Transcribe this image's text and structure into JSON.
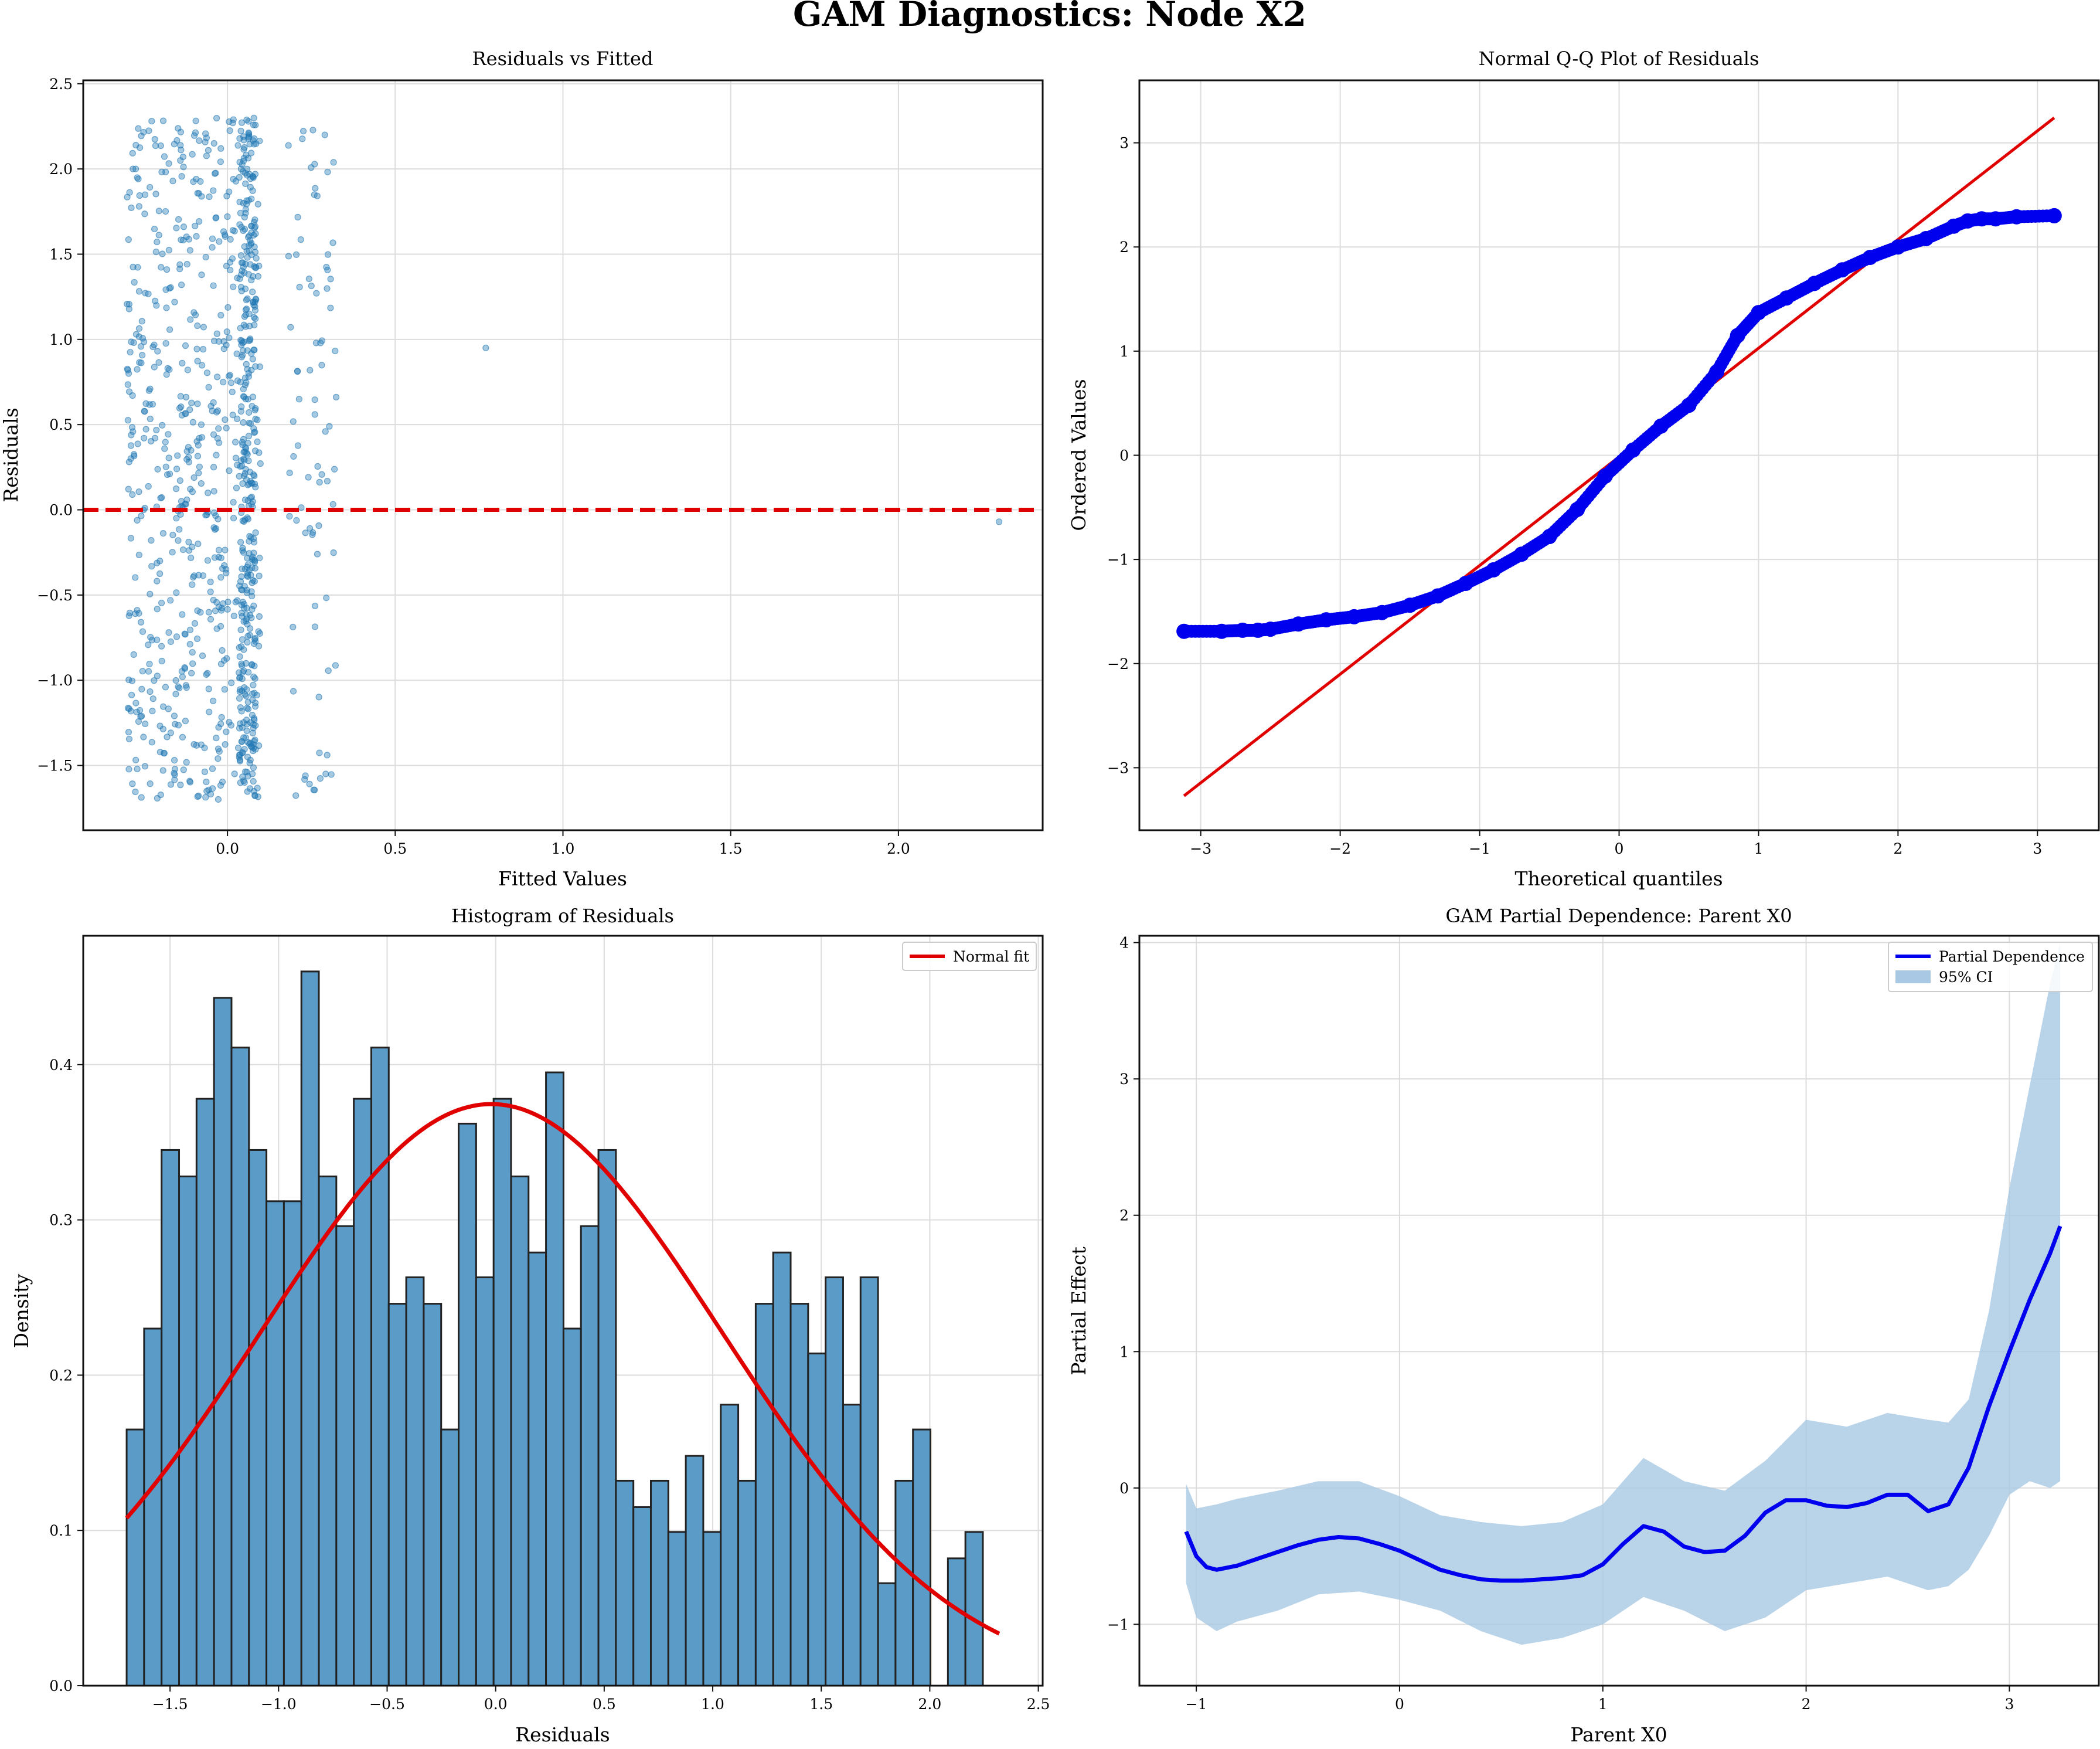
{
  "figure": {
    "title": "GAM Diagnostics: Node X2"
  },
  "chart_data": [
    {
      "type": "scatter",
      "title": "Residuals vs Fitted",
      "xlabel": "Fitted Values",
      "ylabel": "Residuals",
      "xlim": [
        -0.43,
        2.43
      ],
      "ylim": [
        -1.88,
        2.52
      ],
      "xticks": [
        0.0,
        0.5,
        1.0,
        1.5,
        2.0
      ],
      "yticks": [
        -1.5,
        -1.0,
        -0.5,
        0.0,
        0.5,
        1.0,
        1.5,
        2.0,
        2.5
      ],
      "grid": true,
      "reference_line": {
        "y": 0.0,
        "color": "#e00000",
        "style": "dashed"
      },
      "point_color": "#1f77b4",
      "points_summary": {
        "count_approx": 1000,
        "main_cluster_x_range": [
          -0.3,
          0.1
        ],
        "residual_range": [
          -1.7,
          2.3
        ],
        "outlier_points": [
          [
            0.77,
            0.95
          ],
          [
            2.3,
            -0.07
          ]
        ]
      }
    },
    {
      "type": "scatter",
      "title": "Normal Q-Q Plot of Residuals",
      "xlabel": "Theoretical quantiles",
      "ylabel": "Ordered Values",
      "xlim": [
        -3.44,
        3.44
      ],
      "ylim": [
        -3.6,
        3.6
      ],
      "xticks": [
        -3,
        -2,
        -1,
        0,
        1,
        2,
        3
      ],
      "yticks": [
        -3,
        -2,
        -1,
        0,
        1,
        2,
        3
      ],
      "grid": true,
      "point_color": "#0000ee",
      "line_color": "#e00000",
      "reference_line": {
        "x": [
          -3.12,
          3.12
        ],
        "y": [
          -3.27,
          3.24
        ]
      },
      "points": [
        [
          -3.12,
          -1.69
        ],
        [
          -2.85,
          -1.69
        ],
        [
          -2.7,
          -1.68
        ],
        [
          -2.59,
          -1.68
        ],
        [
          -2.5,
          -1.67
        ],
        [
          -2.3,
          -1.62
        ],
        [
          -2.1,
          -1.58
        ],
        [
          -1.9,
          -1.55
        ],
        [
          -1.7,
          -1.51
        ],
        [
          -1.5,
          -1.44
        ],
        [
          -1.3,
          -1.35
        ],
        [
          -1.1,
          -1.23
        ],
        [
          -0.9,
          -1.1
        ],
        [
          -0.7,
          -0.95
        ],
        [
          -0.5,
          -0.78
        ],
        [
          -0.3,
          -0.52
        ],
        [
          -0.1,
          -0.2
        ],
        [
          0.1,
          0.05
        ],
        [
          0.3,
          0.28
        ],
        [
          0.5,
          0.48
        ],
        [
          0.7,
          0.8
        ],
        [
          0.85,
          1.15
        ],
        [
          1.0,
          1.37
        ],
        [
          1.2,
          1.51
        ],
        [
          1.4,
          1.65
        ],
        [
          1.6,
          1.78
        ],
        [
          1.8,
          1.9
        ],
        [
          2.0,
          2.0
        ],
        [
          2.2,
          2.08
        ],
        [
          2.4,
          2.2
        ],
        [
          2.5,
          2.25
        ],
        [
          2.6,
          2.27
        ],
        [
          2.7,
          2.27
        ],
        [
          2.85,
          2.29
        ],
        [
          3.12,
          2.3
        ]
      ]
    },
    {
      "type": "bar",
      "title": "Histogram of Residuals",
      "xlabel": "Residuals",
      "ylabel": "Density",
      "xlim": [
        -1.9,
        2.52
      ],
      "ylim": [
        0.0,
        0.483
      ],
      "xticks": [
        -1.5,
        -1.0,
        -0.5,
        0.0,
        0.5,
        1.0,
        1.5,
        2.0,
        2.5
      ],
      "yticks": [
        0.0,
        0.1,
        0.2,
        0.3,
        0.4
      ],
      "grid": true,
      "bar_color": "#5b9bc8",
      "edge_color": "#222222",
      "bin_start": -1.7,
      "bin_width": 0.0805,
      "values": [
        0.165,
        0.23,
        0.345,
        0.328,
        0.378,
        0.443,
        0.411,
        0.345,
        0.312,
        0.312,
        0.46,
        0.328,
        0.296,
        0.378,
        0.411,
        0.246,
        0.263,
        0.246,
        0.165,
        0.362,
        0.263,
        0.378,
        0.328,
        0.279,
        0.395,
        0.23,
        0.296,
        0.345,
        0.132,
        0.115,
        0.132,
        0.099,
        0.148,
        0.099,
        0.181,
        0.132,
        0.246,
        0.279,
        0.246,
        0.214,
        0.263,
        0.181,
        0.263,
        0.066,
        0.132,
        0.165,
        0,
        0.082,
        0.099
      ],
      "series": [
        {
          "name": "Normal fit",
          "mean": -0.02,
          "std": 1.065,
          "color": "#e00000"
        }
      ],
      "legend": "top-right"
    },
    {
      "type": "line",
      "title": "GAM Partial Dependence: Parent X0",
      "xlabel": "Parent X0",
      "ylabel": "Partial Effect",
      "xlim": [
        -1.28,
        3.44
      ],
      "ylim": [
        -1.45,
        4.05
      ],
      "xticks": [
        -1,
        0,
        1,
        2,
        3
      ],
      "yticks": [
        -1,
        0,
        1,
        2,
        3,
        4
      ],
      "grid": true,
      "legend": "top-right",
      "series": [
        {
          "name": "Partial Dependence",
          "color": "#0000ee",
          "x": [
            -1.05,
            -1.0,
            -0.95,
            -0.9,
            -0.8,
            -0.7,
            -0.6,
            -0.5,
            -0.4,
            -0.3,
            -0.2,
            -0.1,
            0.0,
            0.1,
            0.2,
            0.3,
            0.4,
            0.5,
            0.6,
            0.7,
            0.8,
            0.9,
            1.0,
            1.1,
            1.2,
            1.3,
            1.4,
            1.5,
            1.6,
            1.7,
            1.8,
            1.9,
            2.0,
            2.1,
            2.2,
            2.3,
            2.4,
            2.5,
            2.6,
            2.7,
            2.8,
            2.9,
            3.0,
            3.1,
            3.2,
            3.25
          ],
          "values": [
            -0.32,
            -0.5,
            -0.58,
            -0.6,
            -0.57,
            -0.52,
            -0.47,
            -0.42,
            -0.38,
            -0.36,
            -0.37,
            -0.41,
            -0.46,
            -0.53,
            -0.6,
            -0.64,
            -0.67,
            -0.68,
            -0.68,
            -0.67,
            -0.66,
            -0.64,
            -0.56,
            -0.41,
            -0.28,
            -0.32,
            -0.43,
            -0.47,
            -0.46,
            -0.35,
            -0.18,
            -0.09,
            -0.09,
            -0.13,
            -0.14,
            -0.11,
            -0.05,
            -0.05,
            -0.17,
            -0.12,
            0.15,
            0.6,
            1.0,
            1.38,
            1.72,
            1.92
          ]
        },
        {
          "name": "95% CI",
          "type": "area",
          "color": "#a8c8e4",
          "x": [
            -1.05,
            -1.0,
            -0.9,
            -0.8,
            -0.6,
            -0.4,
            -0.2,
            0.0,
            0.2,
            0.4,
            0.6,
            0.8,
            1.0,
            1.2,
            1.4,
            1.6,
            1.8,
            2.0,
            2.2,
            2.4,
            2.6,
            2.7,
            2.8,
            2.9,
            3.0,
            3.1,
            3.2,
            3.25
          ],
          "lower": [
            -0.7,
            -0.95,
            -1.05,
            -0.98,
            -0.9,
            -0.78,
            -0.76,
            -0.82,
            -0.9,
            -1.05,
            -1.15,
            -1.1,
            -1.0,
            -0.8,
            -0.9,
            -1.05,
            -0.95,
            -0.75,
            -0.7,
            -0.65,
            -0.75,
            -0.72,
            -0.6,
            -0.35,
            -0.05,
            0.05,
            0.0,
            0.05
          ],
          "upper": [
            0.03,
            -0.15,
            -0.12,
            -0.08,
            -0.02,
            0.05,
            0.05,
            -0.06,
            -0.2,
            -0.25,
            -0.28,
            -0.25,
            -0.12,
            0.22,
            0.05,
            -0.02,
            0.2,
            0.5,
            0.45,
            0.55,
            0.5,
            0.48,
            0.65,
            1.3,
            2.2,
            2.95,
            3.7,
            4.0
          ]
        }
      ]
    }
  ]
}
